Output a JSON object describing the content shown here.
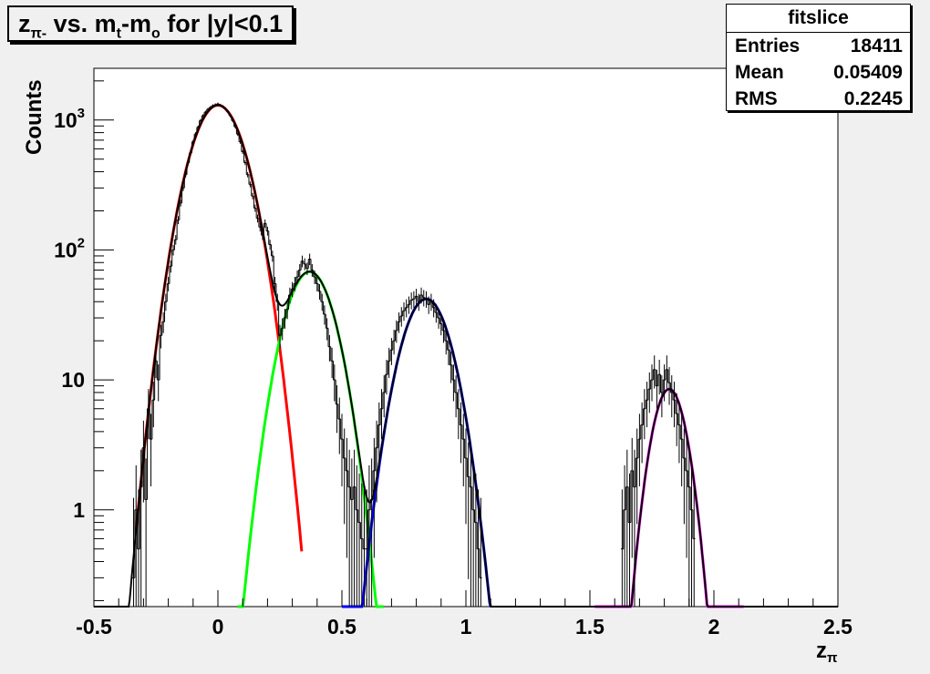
{
  "title": {
    "z": "z",
    "pi_sub": "π-",
    "mid": " vs. m",
    "t_sub": "t",
    "dash": "-m",
    "o_sub": "o",
    "rest": " for |y|<0.1"
  },
  "stats": {
    "name": "fitslice",
    "rows": [
      {
        "label": "Entries",
        "value": "18411"
      },
      {
        "label": "Mean",
        "value": "0.05409"
      },
      {
        "label": "RMS",
        "value": "0.2245"
      }
    ]
  },
  "chart_data": {
    "type": "line",
    "title": "zπ- vs. mt-mo for |y|<0.1",
    "xlabel": "zπ",
    "ylabel": "Counts",
    "xlim": [
      -0.5,
      2.5
    ],
    "ylim": [
      0.18,
      2500
    ],
    "yscale": "log",
    "x_ticks": [
      {
        "v": -0.5,
        "label": "-0.5"
      },
      {
        "v": 0,
        "label": "0"
      },
      {
        "v": 0.5,
        "label": "0.5"
      },
      {
        "v": 1,
        "label": "1"
      },
      {
        "v": 1.5,
        "label": "1.5"
      },
      {
        "v": 2,
        "label": "2"
      },
      {
        "v": 2.5,
        "label": "2.5"
      }
    ],
    "y_ticks": [
      {
        "v": 1,
        "base": "1",
        "exp": ""
      },
      {
        "v": 10,
        "base": "10",
        "exp": ""
      },
      {
        "v": 100,
        "base": "10",
        "exp": "2"
      },
      {
        "v": 1000,
        "base": "10",
        "exp": "3"
      }
    ],
    "grid": false,
    "histogram": {
      "color": "#000000",
      "bins": [
        [
          -0.34,
          0.3
        ],
        [
          -0.33,
          1.0
        ],
        [
          -0.32,
          0.5
        ],
        [
          -0.31,
          1.5
        ],
        [
          -0.3,
          3.0
        ],
        [
          -0.29,
          1.2
        ],
        [
          -0.28,
          6.0
        ],
        [
          -0.27,
          3.5
        ],
        [
          -0.26,
          7.0
        ],
        [
          -0.25,
          14
        ],
        [
          -0.24,
          10
        ],
        [
          -0.23,
          22
        ],
        [
          -0.22,
          28
        ],
        [
          -0.21,
          40
        ],
        [
          -0.2,
          55
        ],
        [
          -0.19,
          75
        ],
        [
          -0.18,
          100
        ],
        [
          -0.17,
          120
        ],
        [
          -0.16,
          170
        ],
        [
          -0.15,
          230
        ],
        [
          -0.14,
          300
        ],
        [
          -0.13,
          380
        ],
        [
          -0.12,
          470
        ],
        [
          -0.11,
          560
        ],
        [
          -0.1,
          680
        ],
        [
          -0.09,
          780
        ],
        [
          -0.08,
          880
        ],
        [
          -0.07,
          990
        ],
        [
          -0.06,
          1080
        ],
        [
          -0.05,
          1150
        ],
        [
          -0.04,
          1210
        ],
        [
          -0.03,
          1250
        ],
        [
          -0.02,
          1290
        ],
        [
          -0.01,
          1310
        ],
        [
          0.0,
          1330
        ],
        [
          0.01,
          1300
        ],
        [
          0.02,
          1270
        ],
        [
          0.03,
          1220
        ],
        [
          0.04,
          1160
        ],
        [
          0.05,
          1080
        ],
        [
          0.06,
          990
        ],
        [
          0.07,
          890
        ],
        [
          0.08,
          780
        ],
        [
          0.09,
          680
        ],
        [
          0.1,
          570
        ],
        [
          0.11,
          470
        ],
        [
          0.12,
          380
        ],
        [
          0.13,
          320
        ],
        [
          0.14,
          260
        ],
        [
          0.15,
          210
        ],
        [
          0.16,
          175
        ],
        [
          0.17,
          150
        ],
        [
          0.18,
          130
        ],
        [
          0.19,
          160
        ],
        [
          0.2,
          140
        ],
        [
          0.21,
          110
        ],
        [
          0.22,
          90
        ],
        [
          0.23,
          55
        ],
        [
          0.24,
          40
        ],
        [
          0.25,
          22
        ],
        [
          0.26,
          25
        ],
        [
          0.27,
          30
        ],
        [
          0.28,
          35
        ],
        [
          0.29,
          45
        ],
        [
          0.3,
          50
        ],
        [
          0.31,
          55
        ],
        [
          0.32,
          62
        ],
        [
          0.33,
          70
        ],
        [
          0.34,
          82
        ],
        [
          0.35,
          78
        ],
        [
          0.36,
          72
        ],
        [
          0.37,
          85
        ],
        [
          0.38,
          70
        ],
        [
          0.39,
          62
        ],
        [
          0.4,
          55
        ],
        [
          0.41,
          48
        ],
        [
          0.42,
          40
        ],
        [
          0.43,
          32
        ],
        [
          0.44,
          25
        ],
        [
          0.45,
          18
        ],
        [
          0.46,
          14
        ],
        [
          0.47,
          10
        ],
        [
          0.48,
          6.5
        ],
        [
          0.49,
          5.0
        ],
        [
          0.5,
          3.5
        ],
        [
          0.51,
          2.5
        ],
        [
          0.52,
          2.0
        ],
        [
          0.53,
          1.5
        ],
        [
          0.54,
          1.2
        ],
        [
          0.55,
          1.5
        ],
        [
          0.56,
          1.0
        ],
        [
          0.57,
          0.8
        ],
        [
          0.58,
          0.6
        ],
        [
          0.59,
          0.5
        ],
        [
          0.6,
          0.5
        ],
        [
          0.61,
          1.0
        ],
        [
          0.62,
          1.2
        ],
        [
          0.63,
          2.0
        ],
        [
          0.64,
          3.0
        ],
        [
          0.65,
          4.5
        ],
        [
          0.66,
          6.0
        ],
        [
          0.67,
          8.0
        ],
        [
          0.68,
          11
        ],
        [
          0.69,
          14
        ],
        [
          0.7,
          17
        ],
        [
          0.71,
          20
        ],
        [
          0.72,
          24
        ],
        [
          0.73,
          28
        ],
        [
          0.74,
          31
        ],
        [
          0.75,
          34
        ],
        [
          0.76,
          36
        ],
        [
          0.77,
          38
        ],
        [
          0.78,
          41
        ],
        [
          0.79,
          42
        ],
        [
          0.8,
          44
        ],
        [
          0.81,
          40
        ],
        [
          0.82,
          45
        ],
        [
          0.83,
          43
        ],
        [
          0.84,
          42
        ],
        [
          0.85,
          38
        ],
        [
          0.86,
          40
        ],
        [
          0.87,
          36
        ],
        [
          0.88,
          33
        ],
        [
          0.89,
          30
        ],
        [
          0.9,
          27
        ],
        [
          0.91,
          24
        ],
        [
          0.92,
          20
        ],
        [
          0.93,
          17
        ],
        [
          0.94,
          13
        ],
        [
          0.95,
          10
        ],
        [
          0.96,
          8.0
        ],
        [
          0.97,
          6.0
        ],
        [
          0.98,
          4.5
        ],
        [
          0.99,
          3.5
        ],
        [
          1.0,
          2.5
        ],
        [
          1.01,
          1.8
        ],
        [
          1.02,
          1.5
        ],
        [
          1.03,
          1.0
        ],
        [
          1.04,
          0.8
        ],
        [
          1.05,
          0.5
        ],
        [
          1.06,
          0.3
        ],
        [
          1.63,
          0.5
        ],
        [
          1.64,
          1.0
        ],
        [
          1.65,
          1.5
        ],
        [
          1.66,
          0.8
        ],
        [
          1.67,
          2.0
        ],
        [
          1.68,
          1.5
        ],
        [
          1.69,
          2.5
        ],
        [
          1.7,
          3.5
        ],
        [
          1.71,
          4.5
        ],
        [
          1.72,
          6.0
        ],
        [
          1.73,
          7.0
        ],
        [
          1.74,
          8.5
        ],
        [
          1.75,
          10
        ],
        [
          1.76,
          12
        ],
        [
          1.77,
          9.0
        ],
        [
          1.78,
          11
        ],
        [
          1.79,
          8.0
        ],
        [
          1.8,
          10
        ],
        [
          1.81,
          12
        ],
        [
          1.82,
          9.5
        ],
        [
          1.83,
          8.0
        ],
        [
          1.84,
          7.0
        ],
        [
          1.85,
          5.5
        ],
        [
          1.86,
          4.5
        ],
        [
          1.87,
          3.5
        ],
        [
          1.88,
          2.5
        ],
        [
          1.89,
          2.0
        ],
        [
          1.9,
          1.5
        ],
        [
          1.91,
          1.0
        ],
        [
          1.92,
          0.6
        ]
      ]
    },
    "total_fit": {
      "color": "#000000"
    },
    "fits": [
      {
        "color": "#ff0000",
        "amp": 1300,
        "mean": 0.0,
        "sigma": 0.085,
        "xmin": -0.33,
        "xmax": 0.34
      },
      {
        "color": "#00ff00",
        "amp": 68,
        "mean": 0.37,
        "sigma": 0.078,
        "xmin": 0.08,
        "xmax": 0.67
      },
      {
        "color": "#0000ff",
        "amp": 42,
        "mean": 0.84,
        "sigma": 0.078,
        "xmin": 0.5,
        "xmax": 1.1
      },
      {
        "color": "#ff00ff",
        "amp": 8.5,
        "mean": 1.82,
        "sigma": 0.055,
        "xmin": 1.52,
        "xmax": 2.12
      }
    ]
  }
}
